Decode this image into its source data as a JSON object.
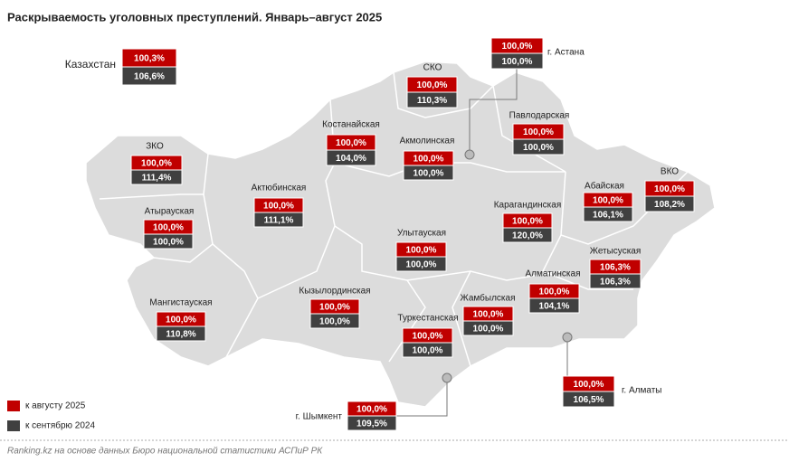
{
  "title": "Раскрываемость уголовных преступлений. Январь–август 2025",
  "regions": [
    {
      "name": "Казахстан",
      "value_2025": "100,3%",
      "value_2024": "106,6%"
    },
    {
      "name": "СКО",
      "value_2025": "100,0%",
      "value_2024": "110,3%"
    },
    {
      "name": "г. Астана",
      "value_2025": "100,0%",
      "value_2024": "100,0%"
    },
    {
      "name": "Павлодарская",
      "value_2025": "100,0%",
      "value_2024": "100,0%"
    },
    {
      "name": "Костанайская",
      "value_2025": "100,0%",
      "value_2024": "104,0%"
    },
    {
      "name": "Акмолинская",
      "value_2025": "100,0%",
      "value_2024": "100,0%"
    },
    {
      "name": "ЗКО",
      "value_2025": "100,0%",
      "value_2024": "111,4%"
    },
    {
      "name": "Абайская",
      "value_2025": "100,0%",
      "value_2024": "106,1%"
    },
    {
      "name": "ВКО",
      "value_2025": "100,0%",
      "value_2024": "108,2%"
    },
    {
      "name": "Актюбинская",
      "value_2025": "100,0%",
      "value_2024": "111,1%"
    },
    {
      "name": "Карагандинская",
      "value_2025": "100,0%",
      "value_2024": "120,0%"
    },
    {
      "name": "Атырауская",
      "value_2025": "100,0%",
      "value_2024": "100,0%"
    },
    {
      "name": "Улытауская",
      "value_2025": "100,0%",
      "value_2024": "100,0%"
    },
    {
      "name": "Жетысуская",
      "value_2025": "106,3%",
      "value_2024": "106,3%"
    },
    {
      "name": "Алматинская",
      "value_2025": "100,0%",
      "value_2024": "104,1%"
    },
    {
      "name": "Кызылординская",
      "value_2025": "100,0%",
      "value_2024": "100,0%"
    },
    {
      "name": "Жамбылская",
      "value_2025": "100,0%",
      "value_2024": "100,0%"
    },
    {
      "name": "Мангистауская",
      "value_2025": "100,0%",
      "value_2024": "110,8%"
    },
    {
      "name": "Туркестанская",
      "value_2025": "100,0%",
      "value_2024": "100,0%"
    },
    {
      "name": "г. Алматы",
      "value_2025": "100,0%",
      "value_2024": "106,5%"
    },
    {
      "name": "г. Шымкент",
      "value_2025": "100,0%",
      "value_2024": "109,5%"
    }
  ],
  "legend": {
    "item_2025": "к августу 2025",
    "item_2024": "к сентябрю 2024"
  },
  "source": "Ranking.kz на основе данных Бюро национальной статистики АСПиР РК"
}
